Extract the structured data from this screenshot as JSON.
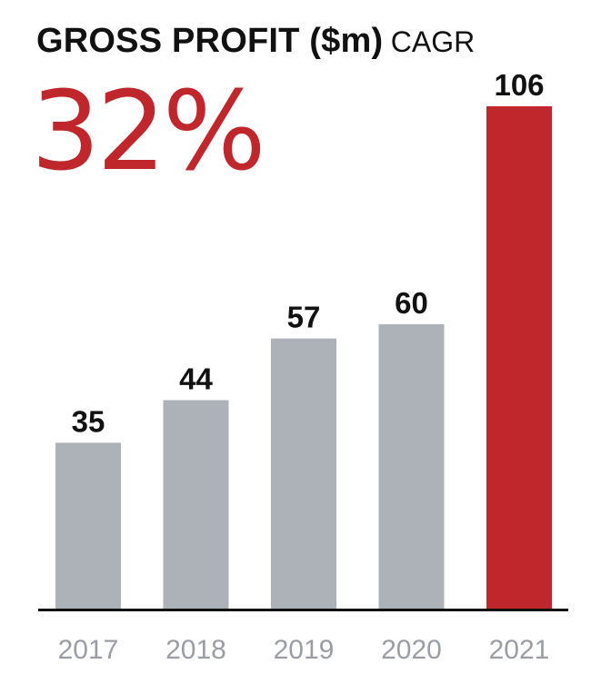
{
  "header": {
    "title": "GROSS PROFIT ($m)",
    "subtitle": "CAGR",
    "cagr_value": "32%"
  },
  "colors": {
    "accent": "#c0272d",
    "bar_default": "#adb1b8",
    "bar_highlight": "#c0272d",
    "axis": "#111111",
    "tick_label": "#9a9ea4",
    "value_label": "#111111"
  },
  "chart_data": {
    "type": "bar",
    "title": "GROSS PROFIT ($m)",
    "subtitle": "CAGR",
    "xlabel": "",
    "ylabel": "",
    "categories": [
      "2017",
      "2018",
      "2019",
      "2020",
      "2021"
    ],
    "values": [
      35,
      44,
      57,
      60,
      106
    ],
    "data_labels": [
      "35",
      "44",
      "57",
      "60",
      "106"
    ],
    "highlight_index": 4,
    "ylim": [
      0,
      106
    ],
    "grid": false,
    "legend": "none"
  }
}
